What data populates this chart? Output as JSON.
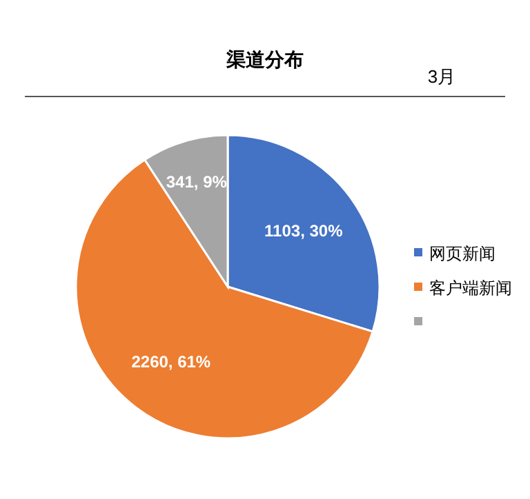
{
  "chart_data": {
    "type": "pie",
    "title": "渠道分布",
    "subtitle": "3月",
    "categories": [
      "网页新闻",
      "客户端新闻",
      null
    ],
    "values": [
      1103,
      2260,
      341
    ],
    "value_labels": [
      "1103, 30%",
      "2260, 61%",
      "341, 9%"
    ],
    "colors": [
      "#4472c4",
      "#ed7d31",
      "#a5a5a5"
    ],
    "legend": "right"
  }
}
